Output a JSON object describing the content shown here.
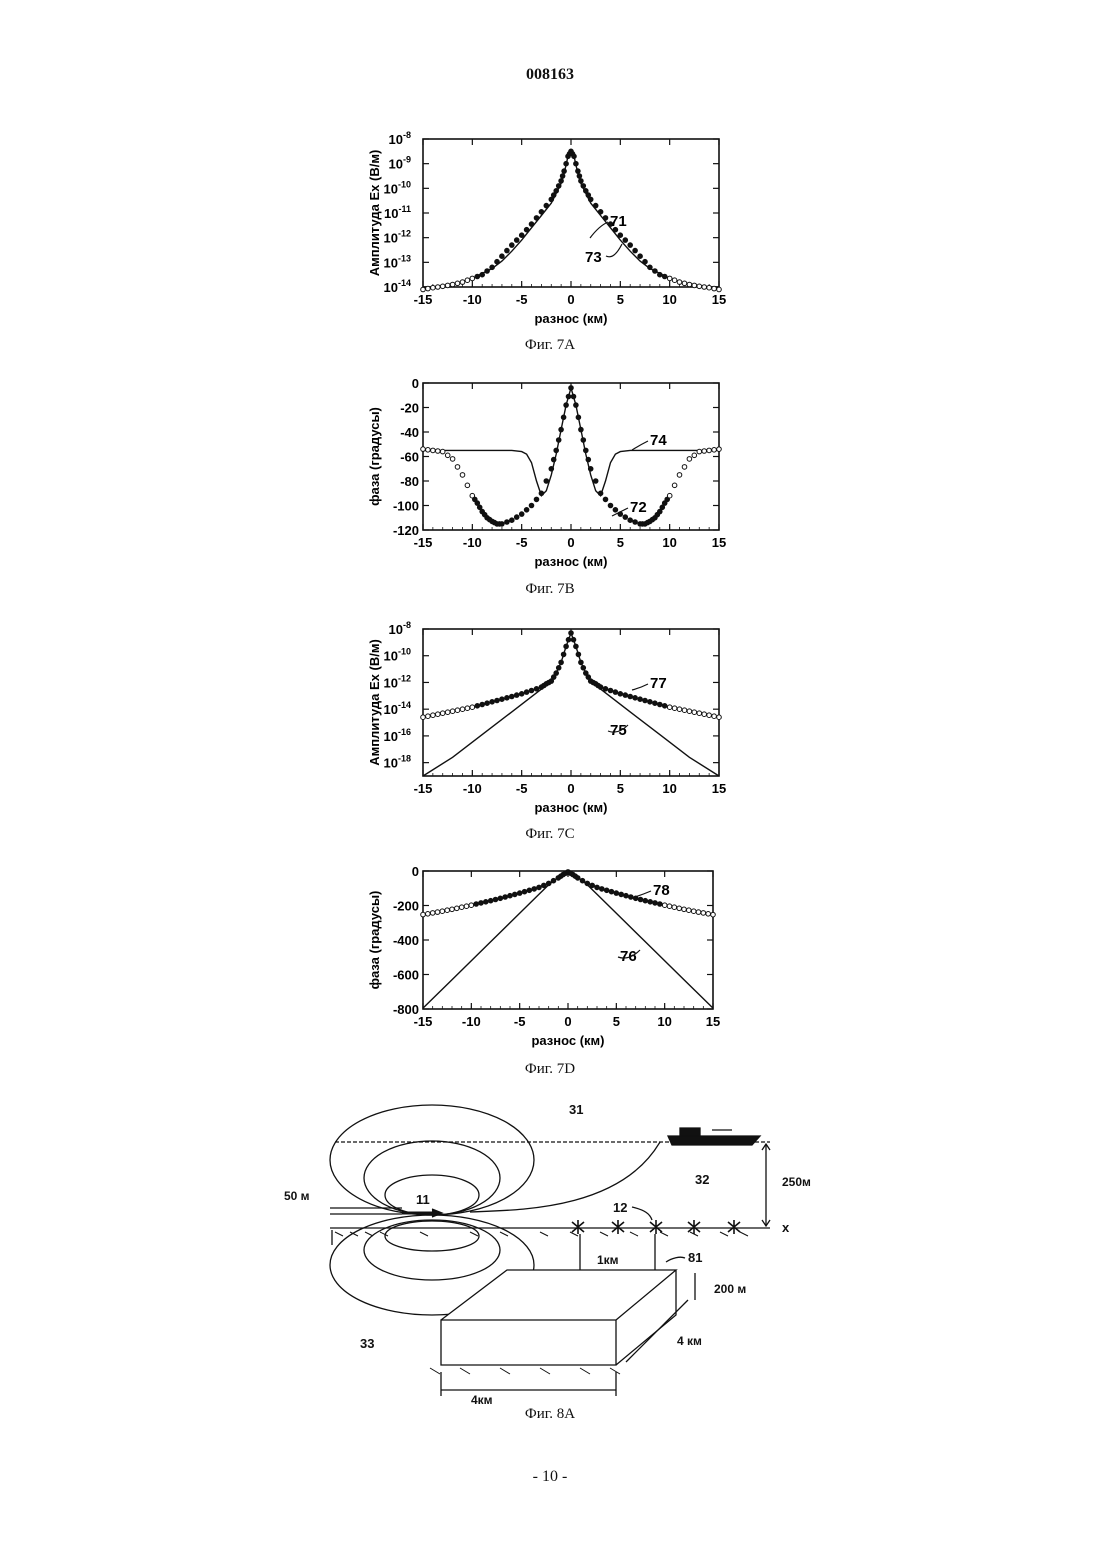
{
  "doc_number": "008163",
  "page_footer": "- 10 -",
  "figures": [
    {
      "caption": "Фиг. 7A"
    },
    {
      "caption": "Фиг. 7B"
    },
    {
      "caption": "Фиг. 7C"
    },
    {
      "caption": "Фиг. 7D"
    },
    {
      "caption": "Фиг. 8A"
    }
  ],
  "chart_data": [
    {
      "id": "7A",
      "type": "line",
      "xlabel": "разнос (км)",
      "ylabel": "Амплитуда Ex (В/м)",
      "xlim": [
        -15,
        15
      ],
      "ylim_exp": [
        -14,
        -8
      ],
      "yscale": "log",
      "xticks": [
        "-15",
        "-10",
        "-5",
        "0",
        "5",
        "10",
        "15"
      ],
      "yticks": [
        {
          "base": "10",
          "exp": "-8"
        },
        {
          "base": "10",
          "exp": "-9"
        },
        {
          "base": "10",
          "exp": "-10"
        },
        {
          "base": "10",
          "exp": "-11"
        },
        {
          "base": "10",
          "exp": "-12"
        },
        {
          "base": "10",
          "exp": "-13"
        },
        {
          "base": "10",
          "exp": "-14"
        }
      ],
      "annotations": [
        "71",
        "73"
      ],
      "series": [
        {
          "style": "line",
          "x": [
            0,
            0.3,
            0.7,
            1,
            1.5,
            2,
            3,
            4,
            5,
            6,
            7,
            8,
            9,
            10,
            11,
            12,
            13,
            14,
            15
          ],
          "log10y": [
            -8.5,
            -8.7,
            -9.4,
            -9.8,
            -10.2,
            -10.6,
            -11.1,
            -11.6,
            -12.1,
            -12.55,
            -12.95,
            -13.25,
            -13.45,
            -13.65,
            -13.78,
            -13.88,
            -13.95,
            -14.0,
            -14.05
          ]
        },
        {
          "style": "markers",
          "x": [
            0,
            0.3,
            0.7,
            1,
            1.5,
            2,
            3,
            4,
            5,
            6,
            7,
            8,
            9,
            10,
            11,
            12,
            13,
            14,
            15
          ],
          "log10y": [
            -8.5,
            -8.7,
            -9.3,
            -9.7,
            -10.1,
            -10.45,
            -10.95,
            -11.45,
            -11.9,
            -12.3,
            -12.75,
            -13.2,
            -13.5,
            -13.65,
            -13.8,
            -13.9,
            -13.97,
            -14.03,
            -14.1
          ]
        }
      ]
    },
    {
      "id": "7B",
      "type": "line",
      "xlabel": "разнос (км)",
      "ylabel": "фаза (градусы)",
      "xlim": [
        -15,
        15
      ],
      "ylim": [
        -120,
        0
      ],
      "xticks": [
        "-15",
        "-10",
        "-5",
        "0",
        "5",
        "10",
        "15"
      ],
      "yticks": [
        "0",
        "-20",
        "-40",
        "-60",
        "-80",
        "-100",
        "-120"
      ],
      "annotations": [
        "74",
        "72"
      ],
      "series": [
        {
          "style": "line",
          "x": [
            0,
            0.5,
            1,
            1.5,
            2,
            2.5,
            3,
            3.5,
            4,
            4.5,
            5,
            6,
            8,
            10,
            12,
            15
          ],
          "y": [
            -4,
            -18,
            -38,
            -58,
            -75,
            -88,
            -92,
            -80,
            -65,
            -58,
            -56,
            -55,
            -55,
            -55,
            -55,
            -55
          ]
        },
        {
          "style": "markers",
          "x": [
            0,
            0.5,
            1,
            1.5,
            2,
            3,
            4,
            5,
            6,
            7,
            7.5,
            8,
            8.5,
            9,
            9.5,
            10,
            11,
            12,
            13,
            14,
            15
          ],
          "y": [
            -4,
            -18,
            -38,
            -55,
            -70,
            -90,
            -100,
            -107,
            -112,
            -115,
            -115,
            -113,
            -110,
            -105,
            -98,
            -92,
            -75,
            -62,
            -56,
            -55,
            -54
          ]
        }
      ]
    },
    {
      "id": "7C",
      "type": "line",
      "xlabel": "разнос (км)",
      "ylabel": "Амплитуда Ex (В/м)",
      "xlim": [
        -15,
        15
      ],
      "ylim_exp": [
        -19,
        -8
      ],
      "yscale": "log",
      "xticks": [
        "-15",
        "-10",
        "-5",
        "0",
        "5",
        "10",
        "15"
      ],
      "yticks": [
        {
          "base": "10",
          "exp": "-8"
        },
        {
          "base": "10",
          "exp": "-10"
        },
        {
          "base": "10",
          "exp": "-12"
        },
        {
          "base": "10",
          "exp": "-14"
        },
        {
          "base": "10",
          "exp": "-16"
        },
        {
          "base": "10",
          "exp": "-18"
        }
      ],
      "annotations": [
        "77",
        "75"
      ],
      "series": [
        {
          "style": "line",
          "x": [
            0,
            0.5,
            1,
            1.5,
            2,
            2.5,
            3,
            6,
            9,
            12,
            15
          ],
          "log10y": [
            -8.3,
            -9.3,
            -10.5,
            -11.3,
            -11.9,
            -12.1,
            -12.5,
            -14.2,
            -15.9,
            -17.6,
            -19.3
          ]
        },
        {
          "style": "markers",
          "x": [
            0,
            0.5,
            1,
            1.5,
            2,
            2.5,
            3,
            4,
            5,
            6,
            7,
            8,
            9,
            10,
            11,
            12,
            13,
            14,
            15
          ],
          "log10y": [
            -8.3,
            -9.3,
            -10.5,
            -11.3,
            -11.9,
            -12.1,
            -12.35,
            -12.6,
            -12.85,
            -13.05,
            -13.25,
            -13.45,
            -13.65,
            -13.85,
            -14.0,
            -14.15,
            -14.3,
            -14.45,
            -14.6
          ]
        }
      ]
    },
    {
      "id": "7D",
      "type": "line",
      "xlabel": "разнос (км)",
      "ylabel": "фаза (градусы)",
      "xlim": [
        -15,
        15
      ],
      "ylim": [
        -800,
        0
      ],
      "xticks": [
        "-15",
        "-10",
        "-5",
        "0",
        "5",
        "10",
        "15"
      ],
      "yticks": [
        "0",
        "-200",
        "-400",
        "-600",
        "-800"
      ],
      "annotations": [
        "78",
        "76"
      ],
      "series": [
        {
          "style": "line",
          "x": [
            0,
            0.5,
            1,
            2,
            3,
            6,
            9,
            12,
            15
          ],
          "y": [
            -5,
            -15,
            -35,
            -80,
            -135,
            -300,
            -465,
            -630,
            -795
          ]
        },
        {
          "style": "markers",
          "x": [
            0,
            0.5,
            1,
            2,
            3,
            4,
            5,
            6,
            7,
            8,
            9,
            10,
            11,
            12,
            13,
            14,
            15
          ],
          "y": [
            -5,
            -20,
            -40,
            -72,
            -95,
            -112,
            -128,
            -143,
            -158,
            -172,
            -185,
            -198,
            -210,
            -222,
            -233,
            -243,
            -253
          ]
        }
      ]
    }
  ],
  "diagram_8a": {
    "labels": [
      "31",
      "32",
      "33",
      "11",
      "12",
      "81"
    ],
    "dimensions": [
      "50 м",
      "250м",
      "1км",
      "200 м",
      "4 км",
      "4км"
    ],
    "axis": "x"
  }
}
